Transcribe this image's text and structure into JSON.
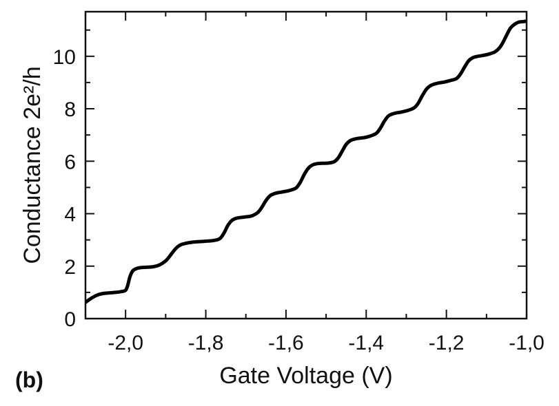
{
  "chart_data": {
    "type": "line",
    "panel_label": "(b)",
    "title": "",
    "xlabel": "Gate Voltage (V)",
    "ylabel": "Conductance 2e²/h",
    "xlim": [
      -2.1,
      -1.0
    ],
    "ylim": [
      0,
      11.7
    ],
    "x_ticks": [
      -2.0,
      -1.8,
      -1.6,
      -1.4,
      -1.2,
      -1.0
    ],
    "x_tick_labels": [
      "-2,0",
      "-1,8",
      "-1,6",
      "-1,4",
      "-1,2",
      "-1,0"
    ],
    "x_minor_ticks": [
      -2.1,
      -1.9,
      -1.7,
      -1.5,
      -1.3,
      -1.1
    ],
    "y_ticks": [
      0,
      2,
      4,
      6,
      8,
      10
    ],
    "y_tick_labels": [
      "0",
      "2",
      "4",
      "6",
      "8",
      "10"
    ],
    "y_minor_ticks": [
      1,
      3,
      5,
      7,
      9,
      11
    ],
    "grid": false,
    "line_color": "#000000",
    "series": [
      {
        "name": "",
        "x": [
          -2.1,
          -2.085,
          -2.07,
          -2.055,
          -2.04,
          -2.025,
          -2.01,
          -2.0,
          -1.995,
          -1.99,
          -1.985,
          -1.98,
          -1.97,
          -1.96,
          -1.945,
          -1.93,
          -1.915,
          -1.9,
          -1.89,
          -1.88,
          -1.87,
          -1.86,
          -1.85,
          -1.84,
          -1.82,
          -1.8,
          -1.78,
          -1.765,
          -1.755,
          -1.745,
          -1.735,
          -1.725,
          -1.715,
          -1.7,
          -1.685,
          -1.67,
          -1.66,
          -1.65,
          -1.64,
          -1.63,
          -1.62,
          -1.605,
          -1.59,
          -1.575,
          -1.565,
          -1.555,
          -1.545,
          -1.535,
          -1.525,
          -1.51,
          -1.495,
          -1.48,
          -1.47,
          -1.46,
          -1.45,
          -1.44,
          -1.43,
          -1.42,
          -1.405,
          -1.39,
          -1.375,
          -1.365,
          -1.355,
          -1.345,
          -1.335,
          -1.325,
          -1.31,
          -1.295,
          -1.28,
          -1.27,
          -1.26,
          -1.25,
          -1.24,
          -1.23,
          -1.22,
          -1.205,
          -1.19,
          -1.175,
          -1.165,
          -1.155,
          -1.145,
          -1.135,
          -1.125,
          -1.11,
          -1.095,
          -1.08,
          -1.07,
          -1.06,
          -1.05,
          -1.04,
          -1.03,
          -1.02,
          -1.01,
          -1.0
        ],
        "y": [
          0.62,
          0.78,
          0.9,
          0.96,
          0.98,
          1.0,
          1.03,
          1.08,
          1.25,
          1.55,
          1.75,
          1.85,
          1.92,
          1.95,
          1.96,
          1.98,
          2.05,
          2.2,
          2.38,
          2.58,
          2.74,
          2.83,
          2.87,
          2.9,
          2.93,
          2.95,
          2.98,
          3.05,
          3.25,
          3.55,
          3.74,
          3.82,
          3.85,
          3.88,
          3.92,
          4.05,
          4.25,
          4.5,
          4.68,
          4.76,
          4.8,
          4.84,
          4.89,
          4.98,
          5.18,
          5.48,
          5.72,
          5.85,
          5.9,
          5.92,
          5.93,
          5.98,
          6.12,
          6.38,
          6.64,
          6.78,
          6.84,
          6.87,
          6.9,
          6.96,
          7.06,
          7.25,
          7.52,
          7.72,
          7.8,
          7.84,
          7.88,
          7.94,
          8.04,
          8.22,
          8.5,
          8.74,
          8.88,
          8.94,
          8.98,
          9.02,
          9.08,
          9.15,
          9.32,
          9.58,
          9.82,
          9.94,
          9.99,
          10.03,
          10.08,
          10.16,
          10.28,
          10.5,
          10.8,
          11.08,
          11.22,
          11.3,
          11.32,
          11.34
        ]
      }
    ]
  }
}
